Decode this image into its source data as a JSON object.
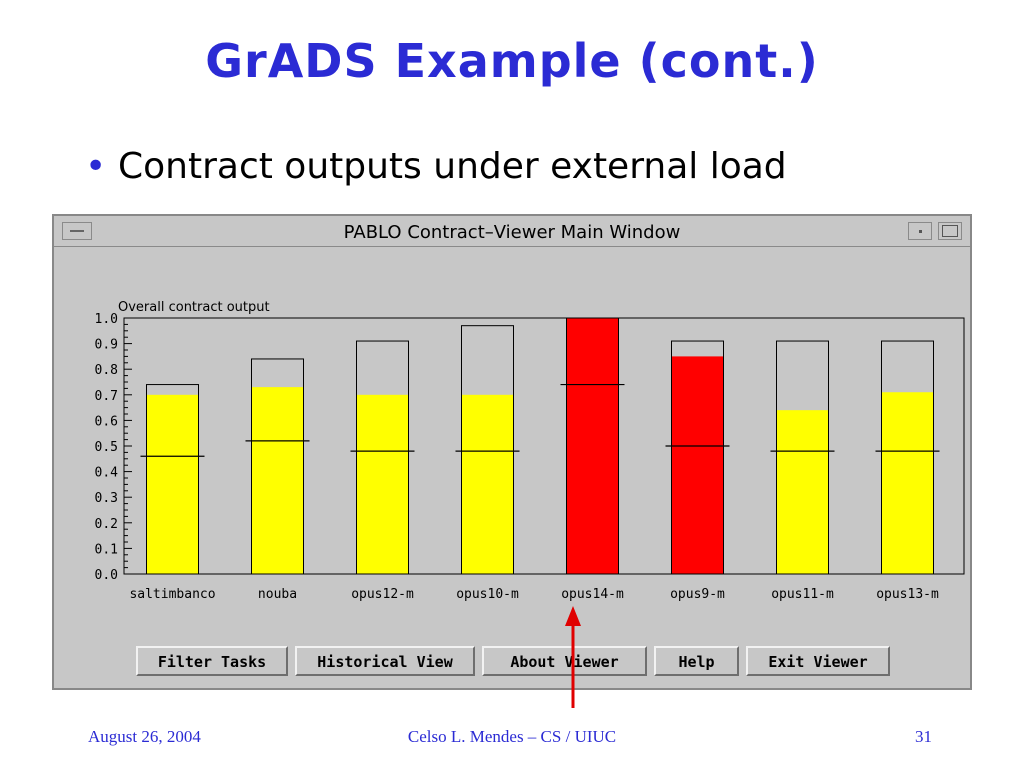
{
  "slide": {
    "title": "GrADS Example (cont.)",
    "bullet": "Contract outputs under external load"
  },
  "window": {
    "title": "PABLO Contract–Viewer Main Window",
    "buttons": [
      "Filter Tasks",
      "Historical View",
      "About Viewer",
      "Help",
      "Exit Viewer"
    ]
  },
  "chart_data": {
    "type": "bar",
    "title": "Overall contract output",
    "categories": [
      "saltimbanco",
      "nouba",
      "opus12-m",
      "opus10-m",
      "opus14-m",
      "opus9-m",
      "opus11-m",
      "opus13-m"
    ],
    "series": [
      {
        "values": [
          0.7,
          0.73,
          0.7,
          0.7,
          1.0,
          0.85,
          0.64,
          0.71
        ]
      }
    ],
    "upper_limit": [
      0.74,
      0.84,
      0.91,
      0.97,
      1.0,
      0.91,
      0.91,
      0.91
    ],
    "marker": [
      0.46,
      0.52,
      0.48,
      0.48,
      0.74,
      0.5,
      0.48,
      0.48
    ],
    "bar_colors": [
      "#ffff00",
      "#ffff00",
      "#ffff00",
      "#ffff00",
      "#ff0000",
      "#ff0000",
      "#ffff00",
      "#ffff00"
    ],
    "ylim": [
      0,
      1.0
    ],
    "yticks": [
      "0.0",
      "0.1",
      "0.2",
      "0.3",
      "0.4",
      "0.5",
      "0.6",
      "0.7",
      "0.8",
      "0.9",
      "1.0"
    ],
    "xlabel": "",
    "ylabel": ""
  },
  "footer": {
    "date": "August 26, 2004",
    "author": "Celso L. Mendes – CS / UIUC",
    "page": "31"
  },
  "colors": {
    "title_blue": "#2b2bd4",
    "window_gray": "#c7c7c7",
    "ok_yellow": "#ffff00",
    "alert_red": "#ff0000"
  }
}
